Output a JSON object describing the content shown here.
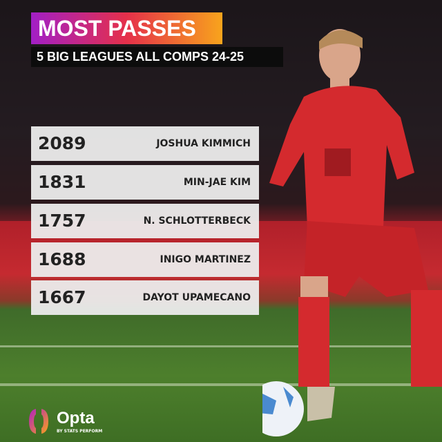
{
  "header": {
    "title": "MOST PASSES",
    "subtitle": "5 BIG LEAGUES ALL COMPS 24-25"
  },
  "rows": [
    {
      "value": "2089",
      "player": "JOSHUA KIMMICH"
    },
    {
      "value": "1831",
      "player": "MIN-JAE KIM"
    },
    {
      "value": "1757",
      "player": "N. SCHLOTTERBECK"
    },
    {
      "value": "1688",
      "player": "INIGO MARTINEZ"
    },
    {
      "value": "1667",
      "player": "DAYOT UPAMECANO"
    }
  ],
  "logo": {
    "name": "Opta",
    "tagline": "BY STATS PERFORM"
  },
  "colors": {
    "title_gradient": [
      "#a21fc6",
      "#e5304a",
      "#f8a41c"
    ],
    "jersey": "#d42a2e"
  }
}
